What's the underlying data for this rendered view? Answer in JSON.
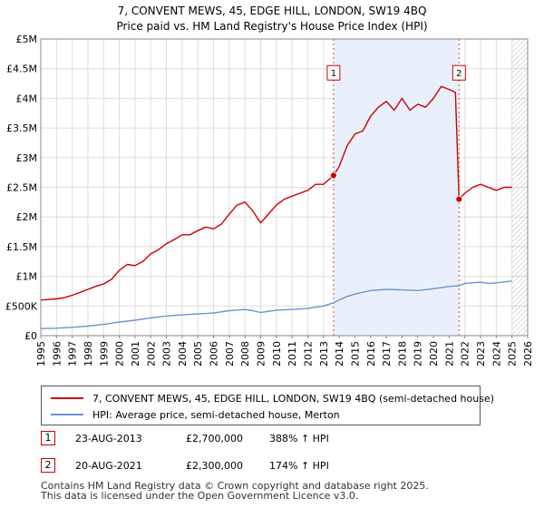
{
  "chart_data": {
    "type": "line",
    "title": "7, CONVENT MEWS, 45, EDGE HILL, LONDON, SW19 4BQ",
    "subtitle": "Price paid vs. HM Land Registry's House Price Index (HPI)",
    "xlabel": "",
    "ylabel": "",
    "xlim": [
      1995,
      2026
    ],
    "ylim": [
      0,
      5000000
    ],
    "x_ticks": [
      "1995",
      "1996",
      "1997",
      "1998",
      "1999",
      "2000",
      "2001",
      "2002",
      "2003",
      "2004",
      "2005",
      "2006",
      "2007",
      "2008",
      "2009",
      "2010",
      "2011",
      "2012",
      "2013",
      "2014",
      "2015",
      "2016",
      "2017",
      "2018",
      "2019",
      "2020",
      "2021",
      "2022",
      "2023",
      "2024",
      "2025",
      "2026"
    ],
    "y_ticks": [
      {
        "value": 0,
        "label": "£0"
      },
      {
        "value": 500000,
        "label": "£500K"
      },
      {
        "value": 1000000,
        "label": "£1M"
      },
      {
        "value": 1500000,
        "label": "£1.5M"
      },
      {
        "value": 2000000,
        "label": "£2M"
      },
      {
        "value": 2500000,
        "label": "£2.5M"
      },
      {
        "value": 3000000,
        "label": "£3M"
      },
      {
        "value": 3500000,
        "label": "£3.5M"
      },
      {
        "value": 4000000,
        "label": "£4M"
      },
      {
        "value": 4500000,
        "label": "£4.5M"
      },
      {
        "value": 5000000,
        "label": "£5M"
      }
    ],
    "grid": true,
    "shaded_region": {
      "from": 2013.64,
      "to": 2021.63
    },
    "forecast_hatch_from": 2025.0,
    "series": [
      {
        "name": "7, CONVENT MEWS, 45, EDGE HILL, LONDON, SW19 4BQ (semi-detached house)",
        "color": "#cc0000",
        "points": [
          [
            1995.0,
            600000
          ],
          [
            1995.5,
            610000
          ],
          [
            1996.0,
            620000
          ],
          [
            1996.5,
            640000
          ],
          [
            1997.0,
            680000
          ],
          [
            1997.5,
            730000
          ],
          [
            1998.0,
            780000
          ],
          [
            1998.5,
            830000
          ],
          [
            1999.0,
            870000
          ],
          [
            1999.5,
            950000
          ],
          [
            2000.0,
            1100000
          ],
          [
            2000.5,
            1200000
          ],
          [
            2001.0,
            1180000
          ],
          [
            2001.5,
            1250000
          ],
          [
            2002.0,
            1380000
          ],
          [
            2002.5,
            1450000
          ],
          [
            2003.0,
            1550000
          ],
          [
            2003.5,
            1620000
          ],
          [
            2004.0,
            1700000
          ],
          [
            2004.5,
            1700000
          ],
          [
            2005.0,
            1770000
          ],
          [
            2005.5,
            1830000
          ],
          [
            2006.0,
            1800000
          ],
          [
            2006.5,
            1880000
          ],
          [
            2007.0,
            2050000
          ],
          [
            2007.5,
            2200000
          ],
          [
            2008.0,
            2250000
          ],
          [
            2008.5,
            2100000
          ],
          [
            2009.0,
            1900000
          ],
          [
            2009.5,
            2050000
          ],
          [
            2010.0,
            2200000
          ],
          [
            2010.5,
            2300000
          ],
          [
            2011.0,
            2350000
          ],
          [
            2011.5,
            2400000
          ],
          [
            2012.0,
            2450000
          ],
          [
            2012.5,
            2550000
          ],
          [
            2013.0,
            2550000
          ],
          [
            2013.64,
            2700000
          ],
          [
            2014.0,
            2850000
          ],
          [
            2014.5,
            3200000
          ],
          [
            2015.0,
            3400000
          ],
          [
            2015.5,
            3450000
          ],
          [
            2016.0,
            3700000
          ],
          [
            2016.5,
            3850000
          ],
          [
            2017.0,
            3950000
          ],
          [
            2017.5,
            3800000
          ],
          [
            2018.0,
            4000000
          ],
          [
            2018.5,
            3800000
          ],
          [
            2019.0,
            3900000
          ],
          [
            2019.5,
            3850000
          ],
          [
            2020.0,
            4000000
          ],
          [
            2020.5,
            4200000
          ],
          [
            2021.0,
            4150000
          ],
          [
            2021.4,
            4100000
          ],
          [
            2021.63,
            2300000
          ],
          [
            2022.0,
            2400000
          ],
          [
            2022.5,
            2500000
          ],
          [
            2023.0,
            2550000
          ],
          [
            2023.5,
            2500000
          ],
          [
            2024.0,
            2450000
          ],
          [
            2024.5,
            2500000
          ],
          [
            2025.0,
            2500000
          ]
        ]
      },
      {
        "name": "HPI: Average price, semi-detached house, Merton",
        "color": "#6b95cf",
        "points": [
          [
            1995.0,
            120000
          ],
          [
            1996.0,
            125000
          ],
          [
            1997.0,
            140000
          ],
          [
            1998.0,
            160000
          ],
          [
            1999.0,
            190000
          ],
          [
            2000.0,
            230000
          ],
          [
            2001.0,
            260000
          ],
          [
            2002.0,
            300000
          ],
          [
            2003.0,
            330000
          ],
          [
            2004.0,
            350000
          ],
          [
            2005.0,
            365000
          ],
          [
            2006.0,
            380000
          ],
          [
            2007.0,
            420000
          ],
          [
            2008.0,
            440000
          ],
          [
            2008.5,
            420000
          ],
          [
            2009.0,
            390000
          ],
          [
            2009.5,
            410000
          ],
          [
            2010.0,
            430000
          ],
          [
            2011.0,
            440000
          ],
          [
            2012.0,
            460000
          ],
          [
            2013.0,
            500000
          ],
          [
            2013.64,
            553000
          ],
          [
            2014.0,
            600000
          ],
          [
            2014.5,
            660000
          ],
          [
            2015.0,
            700000
          ],
          [
            2016.0,
            760000
          ],
          [
            2017.0,
            780000
          ],
          [
            2018.0,
            770000
          ],
          [
            2019.0,
            760000
          ],
          [
            2020.0,
            790000
          ],
          [
            2021.0,
            830000
          ],
          [
            2021.63,
            840000
          ],
          [
            2022.0,
            880000
          ],
          [
            2023.0,
            900000
          ],
          [
            2023.5,
            880000
          ],
          [
            2024.0,
            890000
          ],
          [
            2025.0,
            920000
          ]
        ]
      }
    ],
    "markers": [
      {
        "label": "1",
        "x": 2013.64,
        "y": 2700000,
        "label_y": 4400000
      },
      {
        "label": "2",
        "x": 2021.63,
        "y": 2300000,
        "label_y": 4400000
      }
    ]
  },
  "legend": {
    "items": [
      {
        "label": "7, CONVENT MEWS, 45, EDGE HILL, LONDON, SW19 4BQ (semi-detached house)",
        "color": "#cc0000"
      },
      {
        "label": "HPI: Average price, semi-detached house, Merton",
        "color": "#6b95cf"
      }
    ]
  },
  "transactions": [
    {
      "num": "1",
      "date": "23-AUG-2013",
      "price": "£2,700,000",
      "delta": "388% ↑ HPI"
    },
    {
      "num": "2",
      "date": "20-AUG-2021",
      "price": "£2,300,000",
      "delta": "174% ↑ HPI"
    }
  ],
  "footer": {
    "line1": "Contains HM Land Registry data © Crown copyright and database right 2025.",
    "line2": "This data is licensed under the Open Government Licence v3.0."
  }
}
